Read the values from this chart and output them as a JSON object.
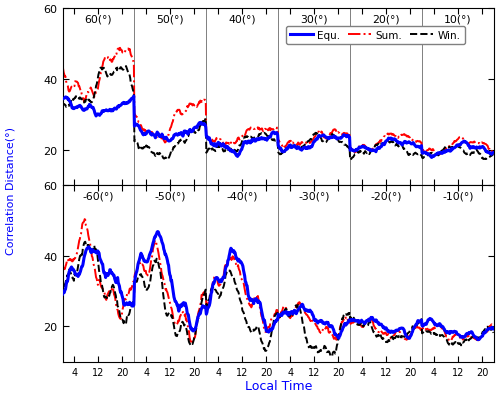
{
  "xlabel": "Local Time",
  "ylabel": "Correlation Distance(°)",
  "top_labels": [
    "60(°)",
    "50(°)",
    "40(°)",
    "30(°)",
    "20(°)",
    "10(°)"
  ],
  "bot_labels": [
    "-60(°)",
    "-50(°)",
    "-40(°)",
    "-30(°)",
    "-20(°)",
    "-10(°)"
  ],
  "legend_labels": [
    "Equ.",
    "Sum.",
    "Win."
  ],
  "ylim": [
    10,
    60
  ],
  "yticks": [
    20,
    40,
    60
  ],
  "xtick_vals": [
    4,
    12,
    20
  ],
  "n_panels": 6,
  "n_pts": 120
}
